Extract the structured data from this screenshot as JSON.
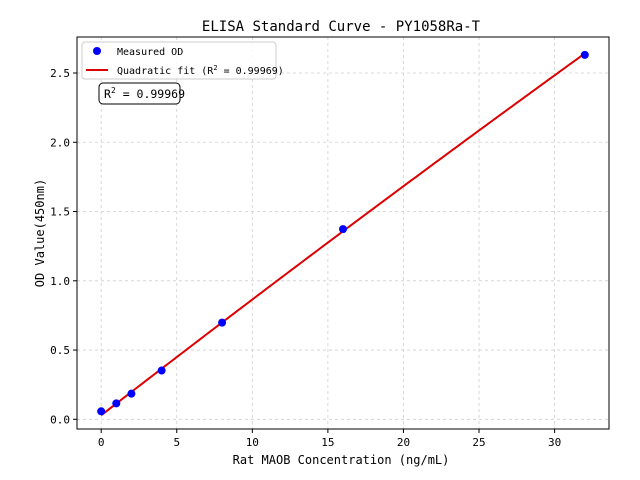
{
  "chart_data": {
    "type": "scatter",
    "title": "ELISA Standard Curve - PY1058Ra-T",
    "xlabel": "Rat MAOB Concentration (ng/mL)",
    "ylabel": "OD Value(450nm)",
    "xlim": [
      -1.6,
      33.6
    ],
    "ylim": [
      -0.07,
      2.76
    ],
    "xticks": [
      0,
      5,
      10,
      15,
      20,
      25,
      30
    ],
    "yticks": [
      0.0,
      0.5,
      1.0,
      1.5,
      2.0,
      2.5
    ],
    "xtick_labels": [
      "0",
      "5",
      "10",
      "15",
      "20",
      "25",
      "30"
    ],
    "ytick_labels": [
      "0.0",
      "0.5",
      "1.0",
      "1.5",
      "2.0",
      "2.5"
    ],
    "grid": true,
    "legend_position": "top-left",
    "series": [
      {
        "name": "Measured OD",
        "kind": "scatter",
        "color": "#0000ff",
        "x": [
          0,
          1,
          2,
          4,
          8,
          16,
          32
        ],
        "y": [
          0.058,
          0.115,
          0.185,
          0.352,
          0.698,
          1.373,
          2.631
        ]
      },
      {
        "name": "Quadratic fit (R",
        "name_superscript": "2",
        "name_suffix": " = 0.99969)",
        "kind": "line",
        "color": "#dd0000",
        "x_range": [
          0,
          32
        ],
        "coefficients": {
          "a": -8.79e-05,
          "b": 0.08444,
          "c": 0.0291
        }
      }
    ],
    "annotation": {
      "prefix": "R",
      "superscript": "2",
      "suffix": " = 0.99969"
    }
  }
}
